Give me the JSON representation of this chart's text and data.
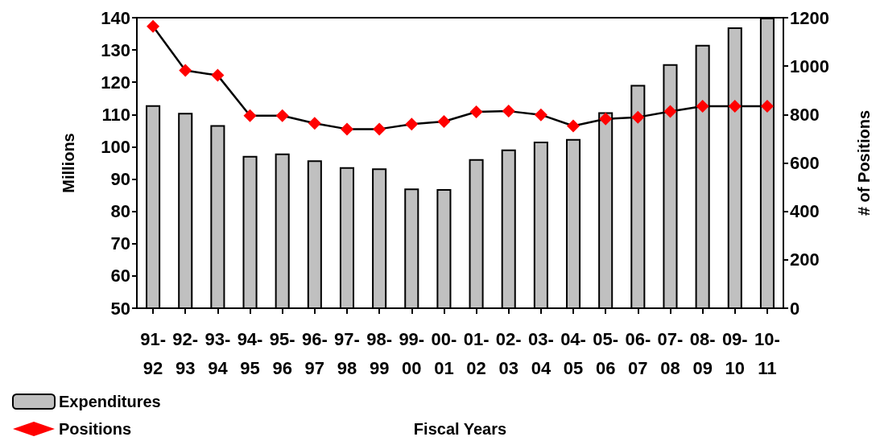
{
  "chart_data": {
    "type": "bar",
    "xlabel": "Fiscal Years",
    "ylabel": "Millions",
    "y2label": "# of Positions",
    "categories": [
      "91-92",
      "92-93",
      "93-94",
      "94-95",
      "95-96",
      "96-97",
      "97-98",
      "98-99",
      "99-00",
      "00-01",
      "01-02",
      "02-03",
      "03-04",
      "04-05",
      "05-06",
      "06-07",
      "07-08",
      "08-09",
      "09-10",
      "10-11"
    ],
    "series": [
      {
        "name": "Expenditures",
        "color": "#c0c0c0",
        "values": [
          112.9,
          110.5,
          106.7,
          97.2,
          97.9,
          95.8,
          93.7,
          93.3,
          87.1,
          86.9,
          96.2,
          99.2,
          101.6,
          102.4,
          110.7,
          119.2,
          125.6,
          131.6,
          137.0,
          140
        ]
      },
      {
        "name": "Positions",
        "type": "line",
        "axis": "y2",
        "color": "#ff0000",
        "marker": "diamond",
        "values": [
          1164,
          982,
          962,
          795,
          795,
          764,
          740,
          740,
          760,
          771,
          811,
          814,
          799,
          753,
          782,
          789,
          813,
          834,
          834,
          834
        ]
      }
    ],
    "ylim": [
      50,
      140
    ],
    "yticks": [
      50,
      60,
      70,
      80,
      90,
      100,
      110,
      120,
      130,
      140
    ],
    "y2lim": [
      0,
      1200
    ],
    "y2ticks": [
      0,
      200,
      400,
      600,
      800,
      1000,
      1200
    ],
    "grid": false,
    "legend": "bottom left"
  }
}
